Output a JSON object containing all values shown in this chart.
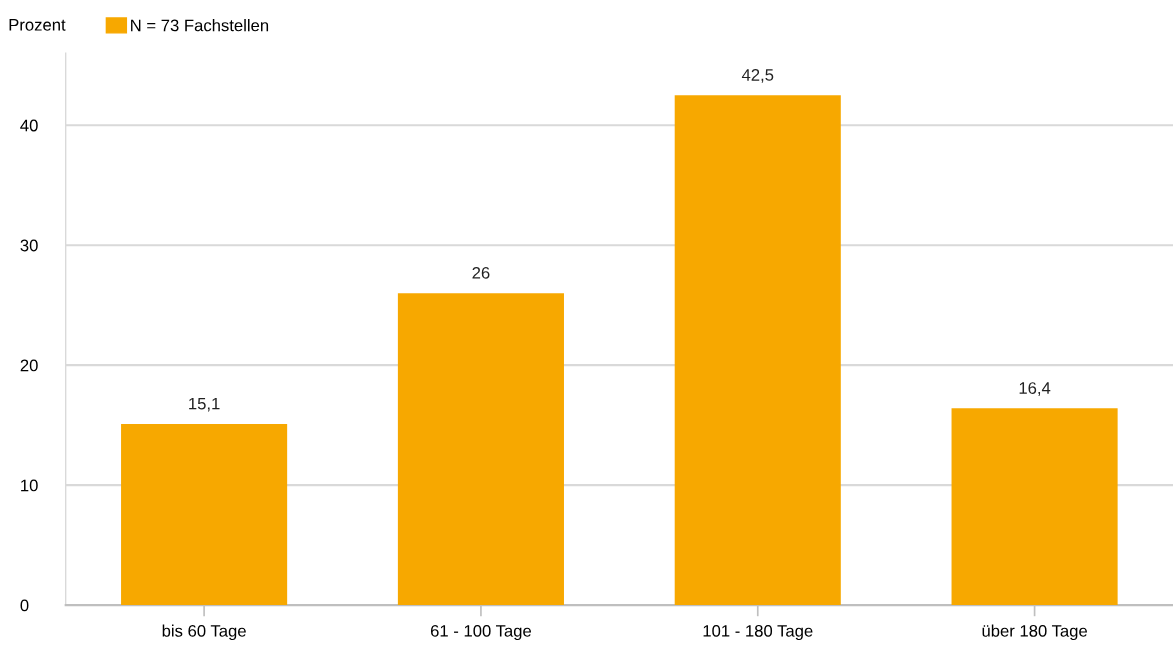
{
  "chart_data": {
    "type": "bar",
    "ylabel": "Prozent",
    "categories": [
      "bis 60 Tage",
      "61 - 100 Tage",
      "101 - 180 Tage",
      "über 180 Tage"
    ],
    "series": [
      {
        "name": "N = 73 Fachstellen",
        "color": "#f7a800",
        "values": [
          15.1,
          26,
          42.5,
          16.4
        ],
        "value_labels": [
          "15,1",
          "26",
          "42,5",
          "16,4"
        ]
      }
    ],
    "ylim": [
      0,
      46
    ],
    "yticks": [
      0,
      10,
      20,
      30,
      40
    ],
    "grid": "y",
    "legend": "top left"
  }
}
